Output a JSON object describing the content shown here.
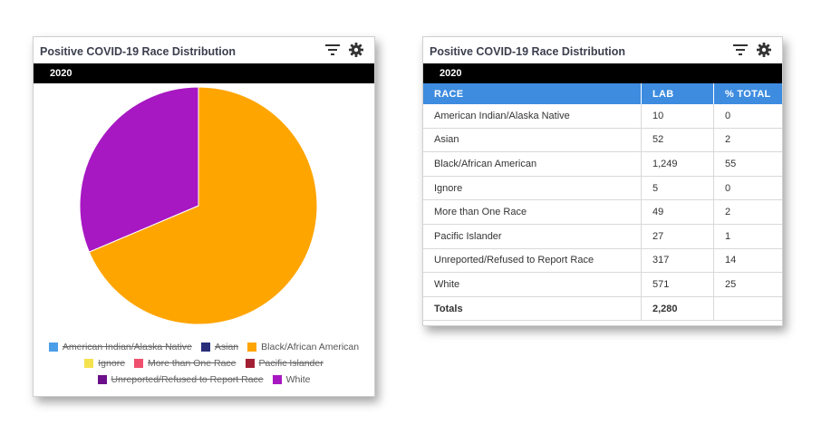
{
  "left_panel": {
    "title": "Positive COVID-19 Race Distribution",
    "year": "2020",
    "icons": [
      "filter-icon",
      "gear-icon"
    ]
  },
  "right_panel": {
    "title": "Positive COVID-19 Race Distribution",
    "year": "2020",
    "icons": [
      "filter-icon",
      "gear-icon"
    ],
    "table": {
      "headers": [
        "RACE",
        "LAB",
        "% TOTAL"
      ],
      "rows": [
        [
          "American Indian/Alaska Native",
          "10",
          "0"
        ],
        [
          "Asian",
          "52",
          "2"
        ],
        [
          "Black/African American",
          "1,249",
          "55"
        ],
        [
          "Ignore",
          "5",
          "0"
        ],
        [
          "More than One Race",
          "49",
          "2"
        ],
        [
          "Pacific Islander",
          "27",
          "1"
        ],
        [
          "Unreported/Refused to Report Race",
          "317",
          "14"
        ],
        [
          "White",
          "571",
          "25"
        ]
      ],
      "totals": [
        "Totals",
        "2,280",
        ""
      ]
    }
  },
  "chart_data": {
    "type": "pie",
    "title": "",
    "legend_position": "bottom",
    "series": [
      {
        "name": "American Indian/Alaska Native",
        "value": 10,
        "color": "#4b9ee8",
        "visible": false
      },
      {
        "name": "Asian",
        "value": 52,
        "color": "#2b2f7a",
        "visible": false
      },
      {
        "name": "Black/African American",
        "value": 1249,
        "color": "#ffa500",
        "visible": true
      },
      {
        "name": "Ignore",
        "value": 5,
        "color": "#f4e24f",
        "visible": false
      },
      {
        "name": "More than One Race",
        "value": 49,
        "color": "#f0506e",
        "visible": false
      },
      {
        "name": "Pacific Islander",
        "value": 27,
        "color": "#a31f34",
        "visible": false
      },
      {
        "name": "Unreported/Refused to Report Race",
        "value": 317,
        "color": "#6b0f8a",
        "visible": false
      },
      {
        "name": "White",
        "value": 571,
        "color": "#a718c2",
        "visible": true
      }
    ]
  }
}
